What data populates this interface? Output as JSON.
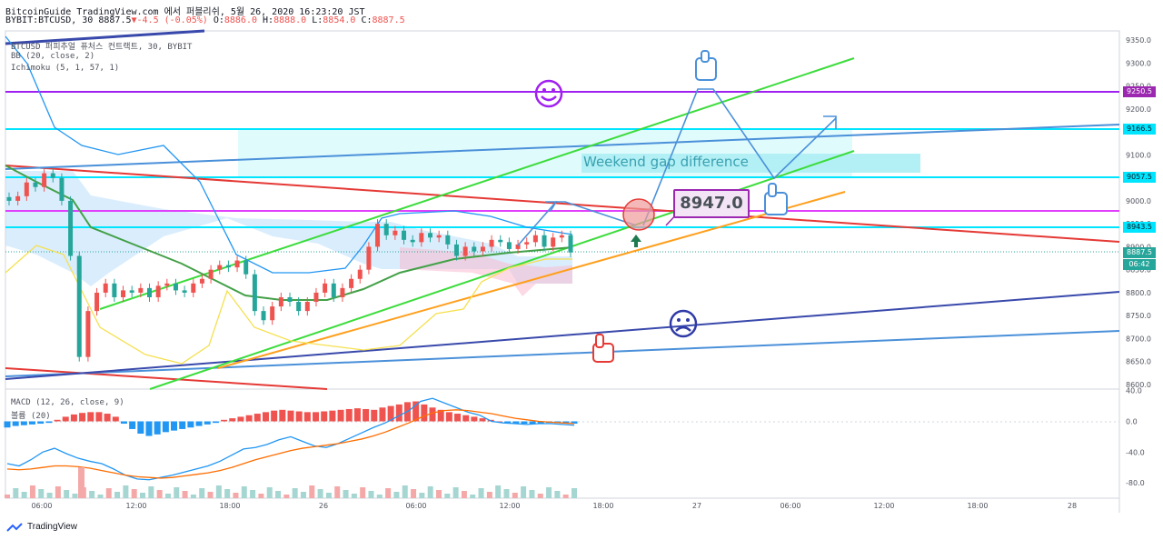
{
  "header": {
    "title_line": "BitcoinGuide TradingView.com 에서 퍼블리쉬, 5월 26, 2020 16:23:20 JST",
    "symbol": "BYBIT:BTCUSD, 30",
    "last": "8887.5",
    "change": "-4.5 (-0.05%)",
    "o_label": "O:",
    "o_val": "8886.0",
    "h_label": "H:",
    "h_val": "8888.0",
    "l_label": "L:",
    "l_val": "8854.0",
    "c_label": "C:",
    "c_val": "8887.5"
  },
  "studies": {
    "main": "BTCUSD 퍼피추얼 퓨처스 컨트랙트, 30, BYBIT",
    "bb": "BB (20, close, 2)",
    "ichimoku": "Ichimoku (5, 1, 57, 1)",
    "macd": "MACD (12, 26, close, 9)",
    "macd_sub": "볼륨 (20)"
  },
  "annotations": {
    "gap_text": "Weekend gap difference",
    "price_box": "8947.0"
  },
  "price_tags": {
    "t9250": "9250.5",
    "t9166": "9166.5",
    "t9057": "9057.5",
    "t8943": "8943.5",
    "t8887": "8887.5",
    "timer": "06:42"
  },
  "branding": {
    "logo_text": "TradingView"
  },
  "colors": {
    "up": "#ef5350",
    "down": "#26a69a",
    "accent_purple": "#9c27b0",
    "cyan": "#00e5ff",
    "green_line": "#3cdc3c",
    "red_line": "#e53935",
    "blue_line": "#3949ab",
    "steel_line": "#4a90d9"
  },
  "chart_data": [
    {
      "type": "candlestick",
      "title": "BTCUSD 퍼피추얼 퓨처스 컨트랙트, 30, BYBIT",
      "y_ticks": [
        8600.0,
        8650.0,
        8700.0,
        8750.0,
        8800.0,
        8850.0,
        8900.0,
        8950.0,
        9000.0,
        9050.0,
        9100.0,
        9150.0,
        9200.0,
        9250.0,
        9300.0,
        9350.0
      ],
      "y_tick_labels": [
        "8600.0",
        "8650.0",
        "8700.0",
        "8750.0",
        "8800.0",
        "8850.0",
        "8900.0",
        "8950.0",
        "9000.0",
        "9050.0",
        "9100.0",
        "9150.0",
        "9200.0",
        "9250.0",
        "9300.0",
        "9350.0"
      ],
      "ylim": [
        8590,
        9370
      ],
      "x_tick_labels": [
        "06:00",
        "12:00",
        "18:00",
        "26",
        "06:00",
        "12:00",
        "18:00",
        "27",
        "06:00",
        "12:00",
        "18:00",
        "28"
      ],
      "closes": [
        9000,
        9010,
        9040,
        9030,
        9060,
        9050,
        9000,
        8880,
        8660,
        8760,
        8800,
        8820,
        8790,
        8805,
        8800,
        8810,
        8790,
        8815,
        8820,
        8805,
        8800,
        8820,
        8830,
        8850,
        8860,
        8855,
        8870,
        8840,
        8760,
        8740,
        8770,
        8790,
        8780,
        8760,
        8780,
        8800,
        8820,
        8790,
        8810,
        8830,
        8850,
        8900,
        8950,
        8925,
        8935,
        8915,
        8910,
        8930,
        8920,
        8925,
        8905,
        8880,
        8900,
        8890,
        8900,
        8915,
        8910,
        8895,
        8905,
        8910,
        8925,
        8900,
        8920,
        8925,
        8887.5
      ],
      "horizontal_levels": [
        9250.5,
        9166.5,
        9057.5,
        8943.5,
        8985.0
      ],
      "last_price": 8887.5
    },
    {
      "type": "bar",
      "title": "MACD (12, 26, close, 9)",
      "y_tick_labels": [
        "40.0",
        "0.0",
        "-40.0",
        "-80.0"
      ],
      "ylim": [
        -100,
        42
      ],
      "histogram": [
        -8,
        -6,
        -5,
        -4,
        -3,
        -2,
        2,
        6,
        9,
        11,
        12,
        12,
        10,
        6,
        -3,
        -10,
        -16,
        -19,
        -17,
        -14,
        -12,
        -10,
        -8,
        -6,
        -4,
        -2,
        2,
        4,
        6,
        8,
        10,
        12,
        14,
        15,
        14,
        13,
        12,
        12,
        13,
        14,
        15,
        16,
        17,
        16,
        15,
        18,
        20,
        22,
        25,
        26,
        22,
        18,
        15,
        12,
        10,
        8,
        6,
        4,
        2,
        0,
        -2,
        -3,
        -3,
        -3,
        -3,
        -2,
        -2,
        -2,
        -3
      ],
      "macd_line": [
        -55,
        -58,
        -50,
        -40,
        -35,
        -42,
        -48,
        -52,
        -55,
        -62,
        -70,
        -75,
        -76,
        -73,
        -70,
        -66,
        -62,
        -58,
        -52,
        -44,
        -36,
        -34,
        -30,
        -24,
        -20,
        -26,
        -32,
        -34,
        -29,
        -22,
        -15,
        -8,
        -2,
        6,
        14,
        26,
        30,
        24,
        18,
        12,
        8,
        0,
        -2,
        -3,
        -4,
        -3,
        -3,
        -4,
        -5
      ],
      "signal_line": [
        -62,
        -63,
        -62,
        -60,
        -58,
        -58,
        -59,
        -61,
        -64,
        -67,
        -70,
        -72,
        -73,
        -74,
        -73,
        -71,
        -69,
        -67,
        -64,
        -60,
        -55,
        -50,
        -46,
        -42,
        -38,
        -35,
        -33,
        -31,
        -29,
        -26,
        -23,
        -19,
        -14,
        -8,
        -2,
        5,
        11,
        14,
        15,
        14,
        12,
        10,
        7,
        4,
        2,
        0,
        -1,
        -2,
        -3
      ]
    }
  ]
}
